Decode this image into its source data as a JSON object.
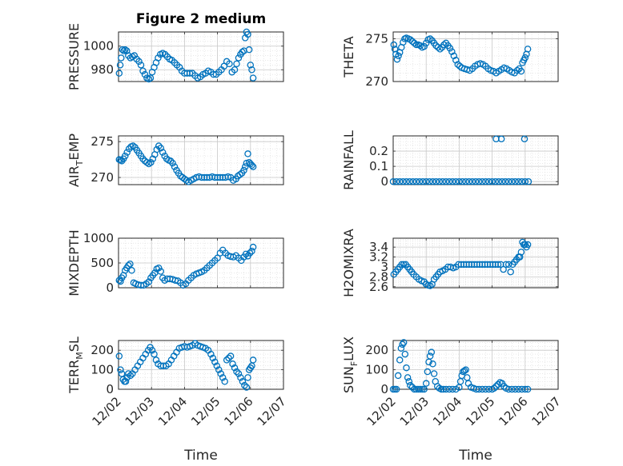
{
  "figure": {
    "title": "Figure 2 medium"
  },
  "x_axis": {
    "label": "Time",
    "ticks": [
      {
        "value": 0,
        "label": "12/02"
      },
      {
        "value": 1,
        "label": "12/03"
      },
      {
        "value": 2,
        "label": "12/04"
      },
      {
        "value": 3,
        "label": "12/05"
      },
      {
        "value": 4,
        "label": "12/06"
      },
      {
        "value": 5,
        "label": "12/07"
      }
    ]
  },
  "marker_color": "#0072BD",
  "chart_data": [
    {
      "type": "scatter",
      "id": "pressure",
      "title": "Figure 2 medium",
      "ylabel": {
        "main": "PRESSURE",
        "sub": "",
        "rest": ""
      },
      "ylim": [
        970,
        1012
      ],
      "yticks": [
        980,
        1000
      ],
      "xlim": [
        0,
        5
      ],
      "x": [
        0.02,
        0.05,
        0.08,
        0.12,
        0.16,
        0.2,
        0.25,
        0.3,
        0.36,
        0.42,
        0.48,
        0.55,
        0.62,
        0.68,
        0.74,
        0.8,
        0.86,
        0.92,
        0.97,
        1.02,
        1.08,
        1.14,
        1.2,
        1.27,
        1.34,
        1.41,
        1.48,
        1.55,
        1.62,
        1.7,
        1.77,
        1.85,
        1.92,
        2.0,
        2.08,
        2.16,
        2.24,
        2.32,
        2.4,
        2.48,
        2.56,
        2.64,
        2.72,
        2.8,
        2.88,
        2.96,
        3.04,
        3.12,
        3.2,
        3.28,
        3.36,
        3.44,
        3.52,
        3.58,
        3.64,
        3.7,
        3.75,
        3.8,
        3.84,
        3.88,
        3.92,
        3.96,
        4.0,
        4.04,
        4.08
      ],
      "y": [
        977,
        984,
        990,
        997,
        996,
        997,
        996,
        992,
        990,
        991,
        992,
        989,
        987,
        984,
        979,
        976,
        973,
        972,
        973,
        978,
        982,
        986,
        990,
        993,
        994,
        993,
        991,
        989,
        988,
        986,
        984,
        982,
        979,
        977,
        977,
        977,
        977,
        975,
        973,
        974,
        976,
        977,
        979,
        978,
        976,
        976,
        978,
        980,
        983,
        987,
        985,
        978,
        980,
        985,
        990,
        993,
        995,
        996,
        1007,
        1012,
        1010,
        997,
        984,
        980,
        973
      ]
    },
    {
      "type": "scatter",
      "id": "theta",
      "ylabel": {
        "main": "THETA",
        "sub": "",
        "rest": ""
      },
      "ylim": [
        270,
        275.8
      ],
      "yticks": [
        270,
        275
      ],
      "xlim": [
        0,
        5
      ],
      "x": [
        0.02,
        0.05,
        0.08,
        0.12,
        0.16,
        0.2,
        0.25,
        0.3,
        0.35,
        0.4,
        0.46,
        0.52,
        0.58,
        0.64,
        0.7,
        0.76,
        0.82,
        0.88,
        0.94,
        1.0,
        1.06,
        1.12,
        1.18,
        1.24,
        1.3,
        1.36,
        1.42,
        1.48,
        1.54,
        1.6,
        1.66,
        1.72,
        1.78,
        1.84,
        1.9,
        1.96,
        2.02,
        2.08,
        2.16,
        2.24,
        2.32,
        2.4,
        2.48,
        2.56,
        2.64,
        2.72,
        2.8,
        2.88,
        2.96,
        3.04,
        3.12,
        3.2,
        3.28,
        3.36,
        3.44,
        3.52,
        3.6,
        3.68,
        3.76,
        3.82,
        3.88,
        3.92,
        3.96,
        4.0,
        4.04,
        4.08
      ],
      "y": [
        274.3,
        273.8,
        273.2,
        272.6,
        273.0,
        273.4,
        274.0,
        274.6,
        275.0,
        275.1,
        275.0,
        274.9,
        274.7,
        274.5,
        274.3,
        274.3,
        274.2,
        274.0,
        274.1,
        274.5,
        274.9,
        275.0,
        274.8,
        274.5,
        274.2,
        274.0,
        273.8,
        274.0,
        274.3,
        274.5,
        274.2,
        273.9,
        273.5,
        273.0,
        272.5,
        272.0,
        271.8,
        271.6,
        271.5,
        271.4,
        271.3,
        271.5,
        271.8,
        272.0,
        272.1,
        272.0,
        271.8,
        271.5,
        271.3,
        271.2,
        271.0,
        271.2,
        271.4,
        271.6,
        271.5,
        271.3,
        271.1,
        271.0,
        271.3,
        271.5,
        271.2,
        272.2,
        272.5,
        272.8,
        273.2,
        273.8
      ]
    },
    {
      "type": "scatter",
      "id": "air_temp",
      "ylabel": {
        "main": "AIR",
        "sub": "T",
        "rest": "EMP"
      },
      "ylim": [
        269,
        275.8
      ],
      "yticks": [
        270,
        275
      ],
      "xlim": [
        0,
        5
      ],
      "x": [
        0.02,
        0.06,
        0.1,
        0.15,
        0.2,
        0.26,
        0.32,
        0.38,
        0.44,
        0.5,
        0.56,
        0.62,
        0.68,
        0.74,
        0.8,
        0.86,
        0.92,
        0.98,
        1.04,
        1.1,
        1.16,
        1.22,
        1.28,
        1.34,
        1.4,
        1.46,
        1.52,
        1.58,
        1.64,
        1.7,
        1.76,
        1.82,
        1.88,
        1.94,
        2.0,
        2.06,
        2.12,
        2.2,
        2.28,
        2.36,
        2.44,
        2.52,
        2.6,
        2.68,
        2.76,
        2.84,
        2.92,
        3.0,
        3.08,
        3.16,
        3.24,
        3.32,
        3.4,
        3.48,
        3.56,
        3.62,
        3.68,
        3.74,
        3.8,
        3.84,
        3.88,
        3.92,
        3.96,
        4.0,
        4.04,
        4.08
      ],
      "y": [
        272.5,
        272.4,
        272.3,
        272.6,
        273.0,
        273.5,
        274.0,
        274.3,
        274.4,
        274.2,
        273.8,
        273.4,
        273.0,
        272.6,
        272.3,
        272.1,
        271.9,
        272.1,
        272.6,
        273.2,
        273.9,
        274.4,
        274.1,
        273.5,
        273.0,
        272.6,
        272.4,
        272.3,
        272.0,
        271.5,
        271.0,
        270.6,
        270.2,
        270.0,
        269.8,
        269.6,
        269.4,
        269.6,
        269.8,
        270.0,
        270.1,
        270.0,
        270.0,
        270.0,
        270.0,
        270.1,
        270.0,
        270.0,
        270.0,
        270.0,
        270.0,
        270.1,
        270.0,
        269.6,
        269.8,
        270.2,
        270.4,
        270.6,
        271.0,
        271.5,
        272.0,
        273.3,
        272.1,
        271.9,
        271.7,
        271.5
      ]
    },
    {
      "type": "scatter",
      "id": "rainfall",
      "ylabel": {
        "main": "RAINFALL",
        "sub": "",
        "rest": ""
      },
      "ylim": [
        -0.02,
        0.3
      ],
      "yticks": [
        0,
        0.1,
        0.2
      ],
      "xlim": [
        0,
        5
      ],
      "x": [
        0.0,
        0.1,
        0.2,
        0.3,
        0.4,
        0.5,
        0.6,
        0.7,
        0.8,
        0.9,
        1.0,
        1.1,
        1.2,
        1.3,
        1.4,
        1.5,
        1.6,
        1.7,
        1.8,
        1.9,
        2.0,
        2.1,
        2.2,
        2.3,
        2.4,
        2.5,
        2.6,
        2.7,
        2.8,
        2.9,
        3.0,
        3.1,
        3.2,
        3.3,
        3.4,
        3.5,
        3.6,
        3.7,
        3.8,
        3.9,
        4.0,
        4.1,
        3.12,
        3.28,
        3.98
      ],
      "y": [
        0,
        0,
        0,
        0,
        0,
        0,
        0,
        0,
        0,
        0,
        0,
        0,
        0,
        0,
        0,
        0,
        0,
        0,
        0,
        0,
        0,
        0,
        0,
        0,
        0,
        0,
        0,
        0,
        0,
        0,
        0,
        0,
        0,
        0,
        0,
        0,
        0,
        0,
        0,
        0,
        0,
        0,
        0.28,
        0.28,
        0.28
      ]
    },
    {
      "type": "scatter",
      "id": "mixdepth",
      "ylabel": {
        "main": "MIXDEPTH",
        "sub": "",
        "rest": ""
      },
      "ylim": [
        0,
        1000
      ],
      "yticks": [
        0,
        500,
        1000
      ],
      "xlim": [
        0,
        5
      ],
      "x": [
        0.02,
        0.06,
        0.1,
        0.15,
        0.2,
        0.25,
        0.3,
        0.35,
        0.4,
        0.46,
        0.52,
        0.6,
        0.68,
        0.76,
        0.84,
        0.92,
        0.98,
        1.04,
        1.1,
        1.16,
        1.22,
        1.28,
        1.34,
        1.4,
        1.48,
        1.56,
        1.64,
        1.72,
        1.8,
        1.88,
        1.96,
        2.04,
        2.12,
        2.2,
        2.28,
        2.36,
        2.44,
        2.52,
        2.6,
        2.68,
        2.76,
        2.84,
        2.92,
        3.0,
        3.08,
        3.16,
        3.24,
        3.32,
        3.4,
        3.48,
        3.56,
        3.64,
        3.72,
        3.8,
        3.86,
        3.92,
        3.98,
        4.04,
        4.08
      ],
      "y": [
        150,
        130,
        200,
        250,
        350,
        400,
        450,
        480,
        350,
        100,
        80,
        60,
        50,
        50,
        80,
        120,
        200,
        250,
        300,
        380,
        400,
        330,
        200,
        150,
        180,
        180,
        170,
        150,
        140,
        100,
        50,
        80,
        150,
        200,
        250,
        280,
        300,
        320,
        350,
        400,
        450,
        500,
        550,
        600,
        700,
        760,
        700,
        650,
        630,
        620,
        650,
        600,
        550,
        620,
        680,
        640,
        700,
        740,
        820
      ]
    },
    {
      "type": "scatter",
      "id": "h2omixra",
      "ylabel": {
        "main": "H2OMIXRA",
        "sub": "",
        "rest": ""
      },
      "ylim": [
        2.58,
        3.58
      ],
      "yticks": [
        2.6,
        2.8,
        3.0,
        3.2,
        3.4
      ],
      "ytick_labels": [
        "2.6",
        "2.8",
        "3",
        "3.2",
        "3.4"
      ],
      "xlim": [
        0,
        5
      ],
      "x": [
        0.02,
        0.08,
        0.14,
        0.2,
        0.26,
        0.32,
        0.38,
        0.44,
        0.5,
        0.56,
        0.62,
        0.7,
        0.78,
        0.86,
        0.94,
        1.0,
        1.06,
        1.12,
        1.18,
        1.24,
        1.3,
        1.36,
        1.42,
        1.5,
        1.58,
        1.66,
        1.74,
        1.82,
        1.9,
        1.98,
        2.06,
        2.14,
        2.22,
        2.3,
        2.38,
        2.46,
        2.54,
        2.62,
        2.7,
        2.78,
        2.86,
        2.94,
        3.02,
        3.1,
        3.18,
        3.26,
        3.34,
        3.42,
        3.5,
        3.56,
        3.62,
        3.68,
        3.74,
        3.8,
        3.84,
        3.88,
        3.92,
        3.96,
        4.0,
        4.04,
        4.08
      ],
      "y": [
        2.85,
        2.9,
        2.95,
        3.0,
        3.05,
        3.05,
        3.05,
        3.0,
        2.95,
        2.9,
        2.85,
        2.8,
        2.75,
        2.72,
        2.7,
        2.65,
        2.63,
        2.62,
        2.65,
        2.75,
        2.8,
        2.85,
        2.9,
        2.92,
        2.95,
        3.0,
        3.0,
        2.98,
        3.0,
        3.05,
        3.05,
        3.05,
        3.05,
        3.05,
        3.05,
        3.05,
        3.05,
        3.05,
        3.05,
        3.05,
        3.05,
        3.05,
        3.05,
        3.05,
        3.05,
        3.05,
        2.95,
        3.05,
        3.05,
        2.9,
        3.05,
        3.1,
        3.15,
        3.2,
        3.2,
        3.3,
        3.5,
        3.45,
        3.45,
        3.4,
        3.45
      ]
    },
    {
      "type": "scatter",
      "id": "terrain_msl",
      "ylabel": {
        "main": "TERR",
        "sub": "M",
        "rest": "SL"
      },
      "ylim": [
        0,
        250
      ],
      "yticks": [
        0,
        100,
        200
      ],
      "xlim": [
        0,
        5
      ],
      "x": [
        0.02,
        0.06,
        0.1,
        0.14,
        0.18,
        0.22,
        0.26,
        0.3,
        0.36,
        0.42,
        0.5,
        0.58,
        0.66,
        0.74,
        0.82,
        0.9,
        0.96,
        1.02,
        1.08,
        1.14,
        1.2,
        1.28,
        1.36,
        1.44,
        1.52,
        1.6,
        1.68,
        1.76,
        1.84,
        1.92,
        2.0,
        2.08,
        2.16,
        2.24,
        2.32,
        2.4,
        2.48,
        2.56,
        2.64,
        2.72,
        2.8,
        2.86,
        2.92,
        2.98,
        3.04,
        3.1,
        3.16,
        3.22,
        3.28,
        3.34,
        3.4,
        3.46,
        3.52,
        3.58,
        3.64,
        3.7,
        3.76,
        3.82,
        3.88,
        3.92,
        3.96,
        4.0,
        4.04,
        4.08
      ],
      "y": [
        170,
        100,
        80,
        50,
        40,
        40,
        60,
        80,
        70,
        80,
        100,
        120,
        140,
        160,
        180,
        200,
        215,
        200,
        180,
        150,
        130,
        120,
        120,
        120,
        130,
        150,
        170,
        190,
        210,
        215,
        220,
        215,
        220,
        225,
        235,
        225,
        220,
        215,
        210,
        200,
        180,
        160,
        140,
        120,
        100,
        80,
        60,
        40,
        150,
        160,
        170,
        130,
        110,
        90,
        80,
        60,
        40,
        20,
        10,
        60,
        100,
        110,
        120,
        150
      ]
    },
    {
      "type": "scatter",
      "id": "sun_flux",
      "ylabel": {
        "main": "SUN",
        "sub": "F",
        "rest": "LUX"
      },
      "ylim": [
        0,
        250
      ],
      "yticks": [
        0,
        100,
        200
      ],
      "xlim": [
        0,
        5
      ],
      "x": [
        0.0,
        0.05,
        0.1,
        0.15,
        0.2,
        0.24,
        0.28,
        0.32,
        0.36,
        0.4,
        0.44,
        0.48,
        0.52,
        0.58,
        0.64,
        0.7,
        0.76,
        0.82,
        0.88,
        0.94,
        1.0,
        1.04,
        1.08,
        1.12,
        1.16,
        1.2,
        1.24,
        1.28,
        1.34,
        1.4,
        1.46,
        1.52,
        1.6,
        1.7,
        1.8,
        1.9,
        2.0,
        2.04,
        2.08,
        2.12,
        2.16,
        2.2,
        2.24,
        2.28,
        2.36,
        2.44,
        2.52,
        2.6,
        2.7,
        2.8,
        2.9,
        3.0,
        3.06,
        3.12,
        3.18,
        3.24,
        3.3,
        3.36,
        3.42,
        3.5,
        3.6,
        3.7,
        3.8,
        3.9,
        4.0,
        4.08
      ],
      "y": [
        0,
        0,
        0,
        70,
        150,
        210,
        230,
        240,
        180,
        110,
        60,
        40,
        20,
        10,
        0,
        0,
        0,
        0,
        0,
        0,
        30,
        90,
        140,
        170,
        190,
        130,
        80,
        40,
        15,
        5,
        0,
        0,
        0,
        0,
        0,
        0,
        10,
        40,
        70,
        90,
        95,
        100,
        60,
        30,
        10,
        5,
        0,
        0,
        0,
        0,
        0,
        0,
        5,
        15,
        25,
        35,
        30,
        15,
        5,
        0,
        0,
        0,
        0,
        0,
        0,
        0
      ]
    }
  ]
}
